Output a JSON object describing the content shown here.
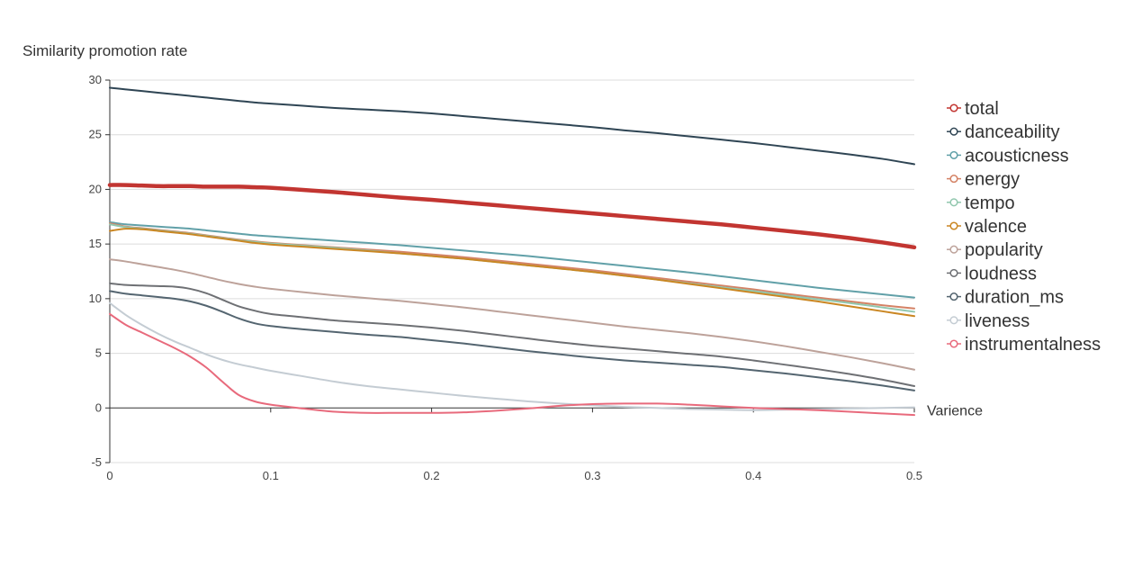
{
  "chart_data": {
    "type": "line",
    "ylabel": "Similarity promotion rate",
    "xlabel": "Varience",
    "xlim": [
      0,
      0.5
    ],
    "ylim": [
      -5,
      30
    ],
    "x_ticks": [
      "0",
      "0.1",
      "0.2",
      "0.3",
      "0.4",
      "0.5"
    ],
    "y_ticks": [
      "30",
      "25",
      "20",
      "15",
      "10",
      "5",
      "0",
      "-5"
    ],
    "grid": "horizontal",
    "legend_position": "right",
    "x": [
      0,
      0.01,
      0.02,
      0.03,
      0.04,
      0.05,
      0.06,
      0.07,
      0.08,
      0.09,
      0.1,
      0.12,
      0.14,
      0.16,
      0.18,
      0.2,
      0.22,
      0.24,
      0.26,
      0.28,
      0.3,
      0.32,
      0.34,
      0.36,
      0.38,
      0.4,
      0.42,
      0.44,
      0.46,
      0.48,
      0.5
    ],
    "series": [
      {
        "name": "total",
        "color": "#c23531",
        "width": 4.5,
        "values": [
          20.4,
          20.4,
          20.35,
          20.3,
          20.3,
          20.3,
          20.25,
          20.25,
          20.25,
          20.2,
          20.15,
          19.95,
          19.75,
          19.5,
          19.25,
          19.05,
          18.8,
          18.55,
          18.3,
          18.05,
          17.8,
          17.55,
          17.3,
          17.05,
          16.8,
          16.5,
          16.2,
          15.9,
          15.55,
          15.15,
          14.7
        ]
      },
      {
        "name": "danceability",
        "color": "#2f4554",
        "width": 2,
        "values": [
          29.3,
          29.15,
          29.0,
          28.85,
          28.7,
          28.55,
          28.4,
          28.25,
          28.1,
          27.95,
          27.85,
          27.65,
          27.45,
          27.3,
          27.15,
          26.95,
          26.7,
          26.45,
          26.2,
          25.95,
          25.7,
          25.4,
          25.15,
          24.85,
          24.55,
          24.25,
          23.9,
          23.55,
          23.2,
          22.8,
          22.3
        ]
      },
      {
        "name": "acousticness",
        "color": "#61a0a8",
        "width": 2,
        "values": [
          17.0,
          16.8,
          16.7,
          16.6,
          16.5,
          16.4,
          16.25,
          16.1,
          15.95,
          15.8,
          15.7,
          15.5,
          15.3,
          15.1,
          14.9,
          14.65,
          14.4,
          14.15,
          13.9,
          13.6,
          13.3,
          13.0,
          12.7,
          12.4,
          12.05,
          11.7,
          11.35,
          11.0,
          10.7,
          10.4,
          10.1
        ]
      },
      {
        "name": "energy",
        "color": "#d48265",
        "width": 2,
        "values": [
          16.9,
          16.6,
          16.45,
          16.3,
          16.15,
          16.0,
          15.8,
          15.6,
          15.4,
          15.25,
          15.1,
          14.9,
          14.7,
          14.5,
          14.3,
          14.05,
          13.8,
          13.5,
          13.2,
          12.9,
          12.6,
          12.25,
          11.9,
          11.55,
          11.2,
          10.85,
          10.45,
          10.1,
          9.75,
          9.4,
          9.1
        ]
      },
      {
        "name": "tempo",
        "color": "#91c7ae",
        "width": 2,
        "values": [
          16.8,
          16.55,
          16.4,
          16.25,
          16.1,
          15.95,
          15.75,
          15.55,
          15.35,
          15.2,
          15.05,
          14.85,
          14.65,
          14.4,
          14.15,
          13.9,
          13.65,
          13.35,
          13.05,
          12.75,
          12.45,
          12.1,
          11.75,
          11.4,
          11.05,
          10.7,
          10.3,
          9.95,
          9.6,
          9.2,
          8.8
        ]
      },
      {
        "name": "valence",
        "color": "#ca8622",
        "width": 2,
        "values": [
          16.2,
          16.4,
          16.35,
          16.2,
          16.05,
          15.9,
          15.7,
          15.5,
          15.3,
          15.1,
          14.95,
          14.75,
          14.55,
          14.35,
          14.15,
          13.9,
          13.65,
          13.35,
          13.05,
          12.75,
          12.45,
          12.1,
          11.75,
          11.35,
          10.95,
          10.55,
          10.15,
          9.75,
          9.3,
          8.85,
          8.4
        ]
      },
      {
        "name": "popularity",
        "color": "#bda29a",
        "width": 2,
        "values": [
          13.6,
          13.4,
          13.15,
          12.9,
          12.65,
          12.35,
          12.0,
          11.65,
          11.35,
          11.1,
          10.9,
          10.6,
          10.3,
          10.05,
          9.8,
          9.5,
          9.2,
          8.85,
          8.5,
          8.15,
          7.8,
          7.45,
          7.15,
          6.85,
          6.5,
          6.1,
          5.65,
          5.15,
          4.65,
          4.1,
          3.5
        ]
      },
      {
        "name": "loudness",
        "color": "#6e7074",
        "width": 2,
        "values": [
          11.4,
          11.25,
          11.2,
          11.15,
          11.1,
          10.9,
          10.5,
          9.9,
          9.3,
          8.9,
          8.6,
          8.3,
          8.0,
          7.8,
          7.6,
          7.35,
          7.05,
          6.7,
          6.35,
          6.0,
          5.7,
          5.45,
          5.2,
          4.95,
          4.7,
          4.35,
          3.95,
          3.55,
          3.1,
          2.6,
          2.0
        ]
      },
      {
        "name": "duration_ms",
        "color": "#546570",
        "width": 2,
        "values": [
          10.7,
          10.45,
          10.3,
          10.15,
          10.0,
          9.75,
          9.35,
          8.8,
          8.2,
          7.75,
          7.5,
          7.2,
          6.95,
          6.7,
          6.5,
          6.2,
          5.9,
          5.55,
          5.2,
          4.9,
          4.6,
          4.35,
          4.15,
          3.95,
          3.75,
          3.45,
          3.15,
          2.8,
          2.45,
          2.05,
          1.6
        ]
      },
      {
        "name": "liveness",
        "color": "#c4ccd3",
        "width": 2,
        "values": [
          9.6,
          8.5,
          7.6,
          6.8,
          6.1,
          5.5,
          4.9,
          4.4,
          4.0,
          3.7,
          3.4,
          2.9,
          2.4,
          2.0,
          1.7,
          1.4,
          1.1,
          0.85,
          0.6,
          0.4,
          0.25,
          0.1,
          0.0,
          -0.1,
          -0.15,
          -0.2,
          -0.15,
          -0.1,
          -0.05,
          0.0,
          0.05
        ]
      },
      {
        "name": "instrumentalness",
        "color": "#e86a7c",
        "width": 2,
        "values": [
          8.6,
          7.6,
          6.9,
          6.2,
          5.5,
          4.7,
          3.7,
          2.4,
          1.2,
          0.6,
          0.3,
          -0.05,
          -0.35,
          -0.45,
          -0.45,
          -0.45,
          -0.4,
          -0.25,
          -0.05,
          0.2,
          0.35,
          0.4,
          0.4,
          0.3,
          0.15,
          0.0,
          -0.1,
          -0.2,
          -0.35,
          -0.5,
          -0.65
        ]
      }
    ]
  }
}
